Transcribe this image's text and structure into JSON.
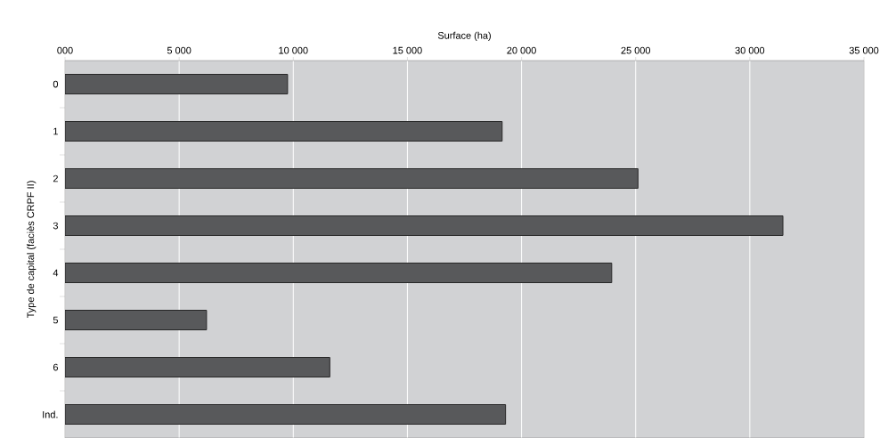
{
  "chart_data": {
    "type": "bar",
    "orientation": "horizontal",
    "xlabel": "Surface (ha)",
    "ylabel": "Type de capital (faciès CRPF II)",
    "categories": [
      "0",
      "1",
      "2",
      "3",
      "4",
      "5",
      "6",
      "Ind."
    ],
    "values": [
      9750,
      19150,
      25100,
      31450,
      23950,
      6200,
      11600,
      19300
    ],
    "color": "#58595b",
    "xlim": [
      0,
      35000
    ],
    "xticks": [
      {
        "value": 0,
        "label": "000"
      },
      {
        "value": 5000,
        "label": "5 000"
      },
      {
        "value": 10000,
        "label": "10 000"
      },
      {
        "value": 15000,
        "label": "15 000"
      },
      {
        "value": 20000,
        "label": "20 000"
      },
      {
        "value": 25000,
        "label": "25 000"
      },
      {
        "value": 30000,
        "label": "30 000"
      },
      {
        "value": 35000,
        "label": "35 000"
      }
    ],
    "grid": "x"
  }
}
